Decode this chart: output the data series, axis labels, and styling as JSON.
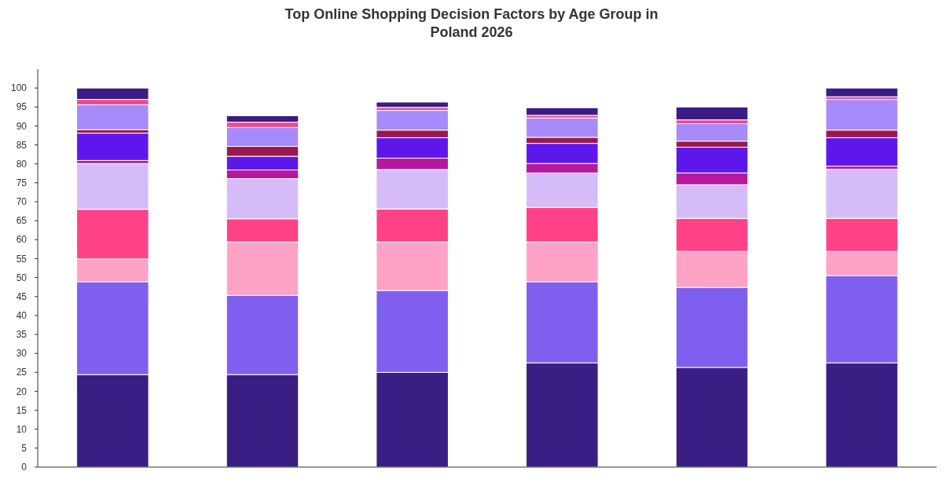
{
  "chart_data": {
    "type": "bar",
    "title": "Top Online Shopping Decision Factors by Age Group in Poland 2026",
    "stacked": true,
    "categories": [
      null,
      null,
      null,
      null,
      null,
      null
    ],
    "series": [
      {
        "color": "#391e83",
        "values": [
          24.4,
          24.4,
          25.0,
          27.5,
          26.3,
          27.5
        ]
      },
      {
        "color": "#7f5fee",
        "values": [
          24.5,
          20.9,
          21.6,
          21.4,
          21.1,
          23.0
        ]
      },
      {
        "color": "#ffa3c6",
        "values": [
          6.0,
          14.1,
          12.8,
          10.5,
          9.5,
          6.4
        ]
      },
      {
        "color": "#ff4287",
        "values": [
          13.1,
          6.1,
          8.7,
          9.1,
          8.7,
          8.7
        ]
      },
      {
        "color": "#d5bcf9",
        "values": [
          12.1,
          10.6,
          10.4,
          9.1,
          8.9,
          13.0
        ]
      },
      {
        "color": "#b5189e",
        "values": [
          0.8,
          2.3,
          3.0,
          2.5,
          3.1,
          0.8
        ]
      },
      {
        "color": "#5e17eb",
        "values": [
          7.2,
          3.6,
          5.4,
          5.3,
          6.8,
          7.5
        ]
      },
      {
        "color": "#9b174f",
        "values": [
          0.9,
          2.6,
          2.0,
          1.6,
          1.6,
          2.0
        ]
      },
      {
        "color": "#a78bfa",
        "values": [
          6.6,
          5.0,
          5.2,
          5.1,
          4.6,
          8.1
        ]
      },
      {
        "color": "#f2478e",
        "values": [
          1.4,
          1.4,
          0.8,
          0.7,
          1.0,
          0.7
        ]
      },
      {
        "color": "#3b1c85",
        "values": [
          3.0,
          1.7,
          1.4,
          2.0,
          3.4,
          2.3
        ]
      }
    ],
    "ylim": [
      0,
      105
    ],
    "yticks": [
      0,
      5,
      10,
      15,
      20,
      25,
      30,
      35,
      40,
      45,
      50,
      55,
      60,
      65,
      70,
      75,
      80,
      85,
      90,
      95,
      100
    ],
    "grid": false
  }
}
